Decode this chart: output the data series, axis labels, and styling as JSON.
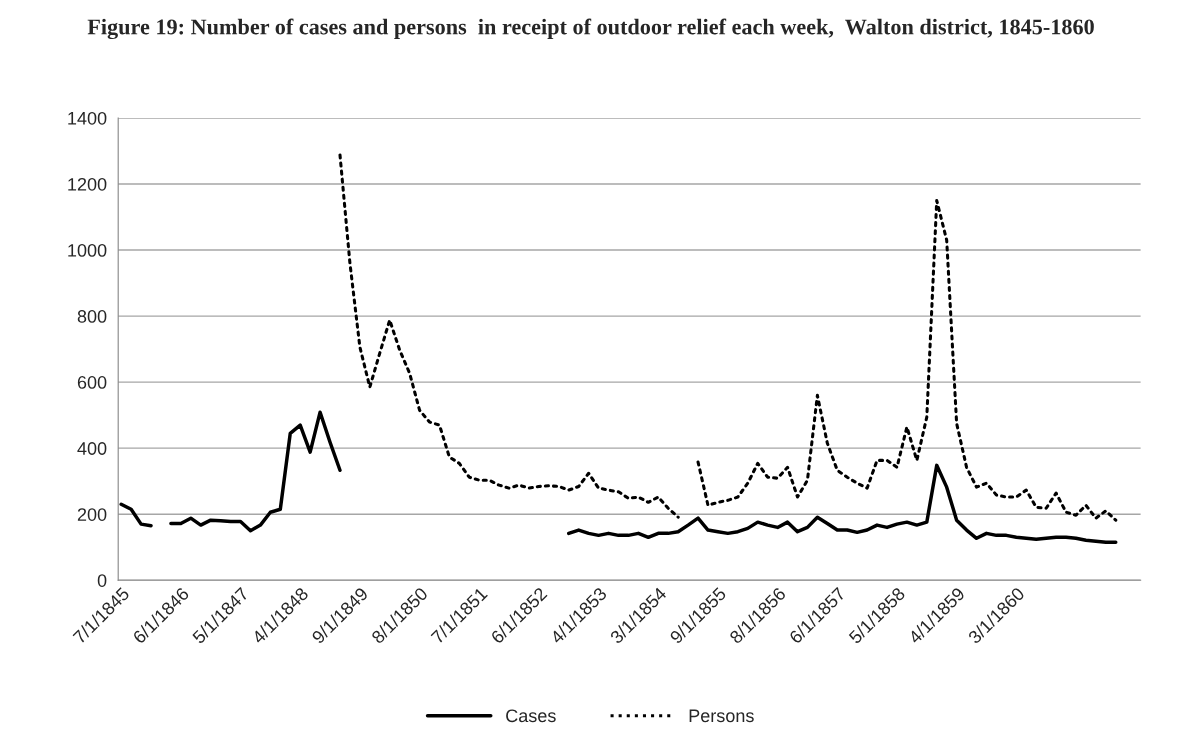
{
  "chart_data": {
    "type": "line",
    "title": "Figure 19: Number of cases and persons  in receipt of outdoor relief each week,  Walton district, 1845-1860",
    "categories": [
      "7/1/1845",
      null,
      null,
      null,
      null,
      null,
      "6/1/1846",
      null,
      null,
      null,
      null,
      null,
      "5/1/1847",
      null,
      null,
      null,
      null,
      null,
      "4/1/1848",
      null,
      null,
      null,
      null,
      null,
      "9/1/1849",
      null,
      null,
      null,
      null,
      null,
      "8/1/1850",
      null,
      null,
      null,
      null,
      null,
      "7/1/1851",
      null,
      null,
      null,
      null,
      null,
      "6/1/1852",
      null,
      null,
      null,
      null,
      null,
      "4/1/1853",
      null,
      null,
      null,
      null,
      null,
      "3/1/1854",
      null,
      null,
      null,
      null,
      null,
      "9/1/1855",
      null,
      null,
      null,
      null,
      null,
      "8/1/1856",
      null,
      null,
      null,
      null,
      null,
      "6/1/1857",
      null,
      null,
      null,
      null,
      null,
      "5/1/1858",
      null,
      null,
      null,
      null,
      null,
      "4/1/1859",
      null,
      null,
      null,
      null,
      null,
      "3/1/1860",
      null,
      null,
      null,
      null,
      null,
      null,
      null,
      null,
      null,
      null,
      null,
      null
    ],
    "series": [
      {
        "name": "Cases",
        "color": "#000000",
        "line_style": "solid",
        "values": [
          230,
          215,
          170,
          165,
          null,
          172,
          172,
          188,
          167,
          182,
          180,
          178,
          178,
          150,
          167,
          206,
          215,
          445,
          470,
          388,
          509,
          418,
          333,
          null,
          null,
          null,
          null,
          null,
          null,
          null,
          null,
          null,
          null,
          null,
          null,
          null,
          null,
          null,
          null,
          null,
          null,
          null,
          null,
          null,
          null,
          142,
          152,
          142,
          136,
          142,
          136,
          136,
          142,
          130,
          142,
          142,
          147,
          167,
          188,
          152,
          147,
          142,
          147,
          157,
          176,
          167,
          160,
          176,
          147,
          160,
          191,
          172,
          152,
          152,
          145,
          152,
          167,
          160,
          170,
          176,
          167,
          176,
          348,
          282,
          182,
          152,
          127,
          142,
          136,
          136,
          130,
          127,
          124,
          127,
          130,
          130,
          127,
          121,
          118,
          115,
          115,
          null,
          null
        ]
      },
      {
        "name": "Persons",
        "color": "#000000",
        "line_style": "dotted",
        "values": [
          null,
          null,
          null,
          null,
          null,
          null,
          null,
          null,
          null,
          null,
          null,
          null,
          null,
          null,
          null,
          null,
          null,
          null,
          null,
          null,
          null,
          null,
          1288,
          960,
          706,
          585,
          688,
          788,
          697,
          627,
          515,
          479,
          470,
          373,
          354,
          312,
          303,
          303,
          288,
          279,
          288,
          279,
          284,
          286,
          284,
          273,
          284,
          324,
          279,
          273,
          268,
          248,
          252,
          236,
          252,
          218,
          191,
          null,
          358,
          227,
          236,
          242,
          252,
          294,
          354,
          312,
          309,
          342,
          252,
          303,
          560,
          415,
          333,
          312,
          294,
          279,
          363,
          363,
          342,
          464,
          363,
          494,
          1150,
          1030,
          475,
          342,
          282,
          294,
          258,
          252,
          252,
          273,
          221,
          218,
          264,
          206,
          197,
          227,
          188,
          210,
          182,
          null,
          null
        ]
      }
    ],
    "ylim": [
      0,
      1400
    ],
    "yticks": [
      0,
      200,
      400,
      600,
      800,
      1000,
      1200,
      1400
    ],
    "grid": "y",
    "legend": "bottom",
    "marker": "none"
  }
}
